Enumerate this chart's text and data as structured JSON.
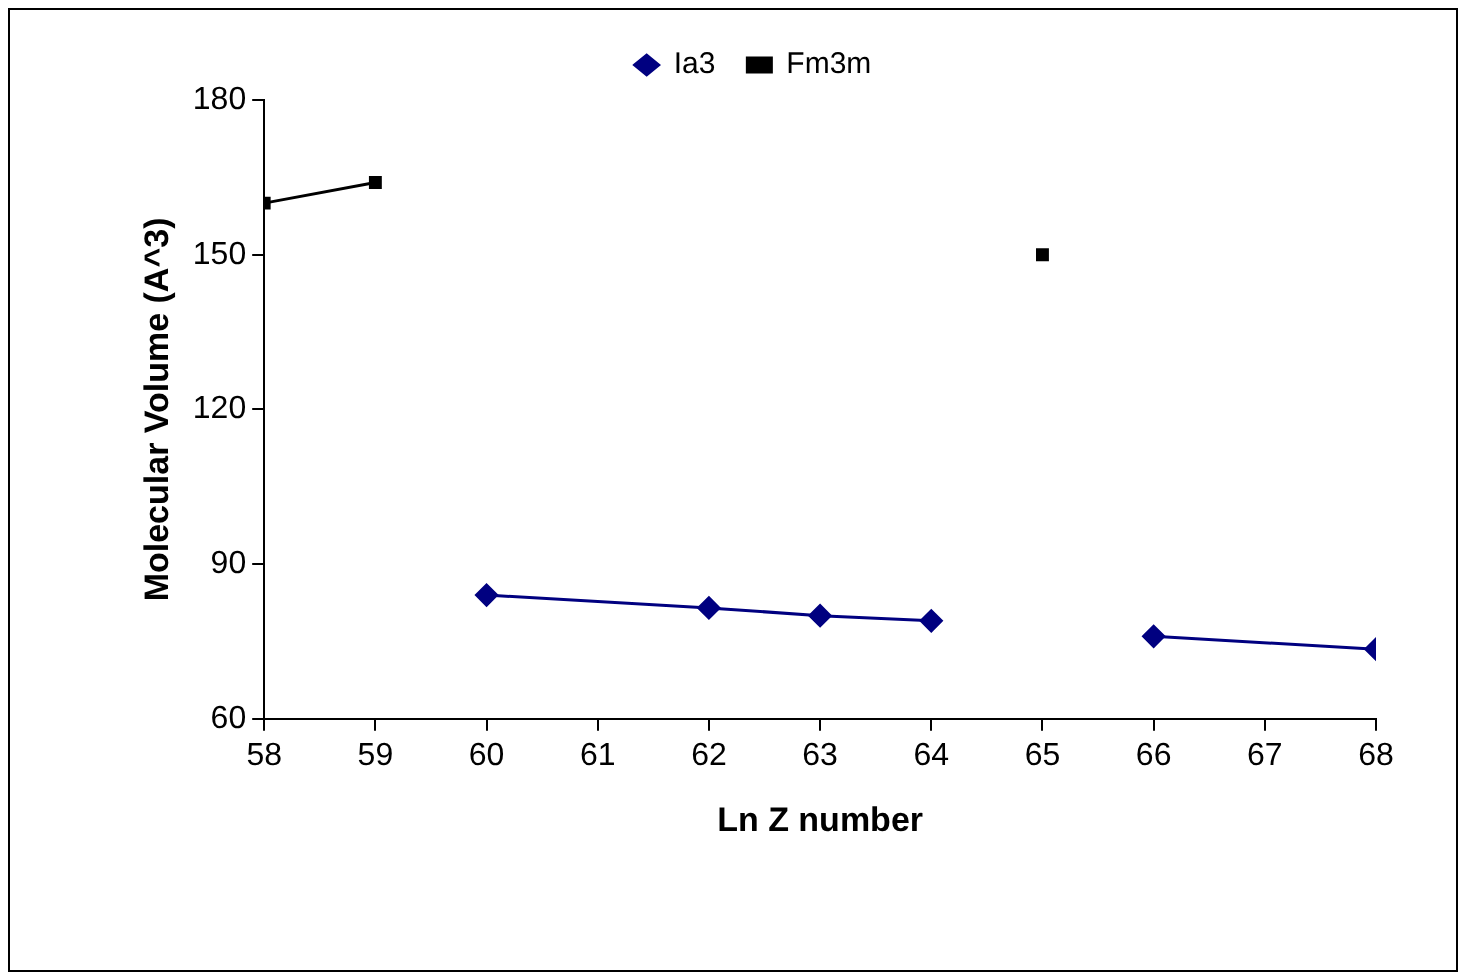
{
  "chart_data": {
    "type": "line",
    "xlabel": "Ln Z number",
    "ylabel": "Molecular Volume (A^3)",
    "series": [
      {
        "name": "Ia3",
        "color": "#000080",
        "marker": "diamond",
        "x": [
          60,
          62,
          63,
          64,
          65,
          66,
          68
        ],
        "values": [
          84,
          81.5,
          80,
          79,
          null,
          76,
          73.5
        ]
      },
      {
        "name": "Fm3m",
        "color": "#000000",
        "marker": "square",
        "x": [
          58,
          59,
          60,
          65
        ],
        "values": [
          160,
          164,
          null,
          150
        ]
      }
    ],
    "xlim": [
      58,
      68
    ],
    "xticks": [
      58,
      59,
      60,
      61,
      62,
      63,
      64,
      65,
      66,
      67,
      68
    ],
    "ylim": [
      60,
      180
    ],
    "yticks": [
      60,
      90,
      120,
      150,
      180
    ],
    "grid": false,
    "legend": "top"
  }
}
